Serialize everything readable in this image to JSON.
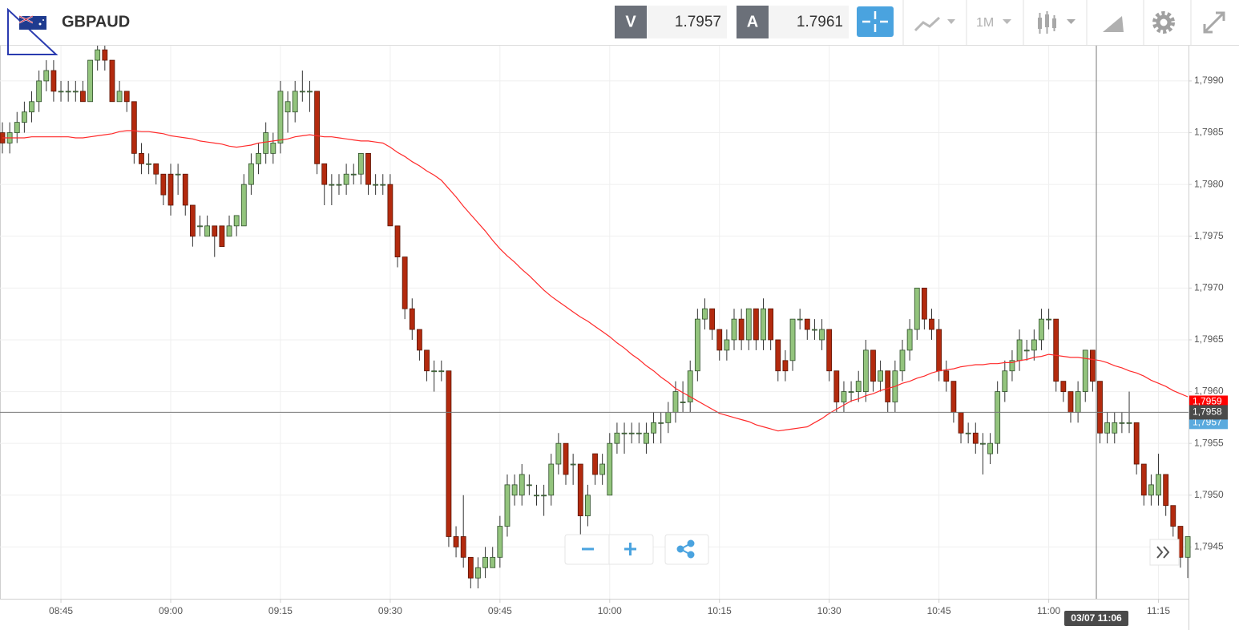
{
  "header": {
    "symbol": "GBPAUD",
    "bid_label": "V",
    "bid": "1.7957",
    "ask_label": "A",
    "ask": "1.7961",
    "timeframe": "1M"
  },
  "chart_data": {
    "type": "candlestick",
    "categories": [
      null,
      null,
      null,
      null,
      null,
      null,
      null,
      null,
      "08:45",
      null,
      null,
      null,
      null,
      null,
      null,
      null,
      null,
      null,
      null,
      null,
      null,
      null,
      null,
      "09:00",
      null,
      null,
      null,
      null,
      null,
      null,
      null,
      null,
      null,
      null,
      null,
      null,
      null,
      null,
      "09:15",
      null,
      null,
      null,
      null,
      null,
      null,
      null,
      null,
      null,
      null,
      null,
      null,
      null,
      null,
      "09:30",
      null,
      null,
      null,
      null,
      null,
      null,
      null,
      null,
      null,
      null,
      null,
      null,
      null,
      null,
      "09:45",
      null,
      null,
      null,
      null,
      null,
      null,
      null,
      null,
      null,
      null,
      null,
      null,
      null,
      null,
      "10:00",
      null,
      null,
      null,
      null,
      null,
      null,
      null,
      null,
      null,
      null,
      null,
      null,
      null,
      null,
      "10:15",
      null,
      null,
      null,
      null,
      null,
      null,
      null,
      null,
      null,
      null,
      null,
      null,
      null,
      null,
      "10:30",
      null,
      null,
      null,
      null,
      null,
      null,
      null,
      null,
      null,
      null,
      null,
      null,
      null,
      null,
      "10:45",
      null,
      null,
      null,
      null,
      null,
      null,
      null,
      null,
      null,
      null,
      null,
      null,
      null,
      null,
      "11:00",
      null,
      null,
      null,
      null,
      null,
      null,
      null,
      null,
      null,
      null,
      null,
      null,
      null,
      null,
      "11:15",
      null,
      null,
      null,
      null
    ],
    "open": [
      1.7985,
      1.7984,
      1.7985,
      1.7986,
      1.7987,
      1.7988,
      1.799,
      1.7991,
      1.7989,
      1.7989,
      1.7989,
      1.7989,
      1.7988,
      1.7992,
      1.7993,
      1.7992,
      1.7988,
      1.7989,
      1.7988,
      1.7983,
      1.7982,
      1.7982,
      1.7981,
      1.7981,
      1.7981,
      1.7981,
      1.7978,
      1.7976,
      1.7975,
      1.7976,
      1.7976,
      1.7975,
      1.7976,
      1.7976,
      1.798,
      1.7982,
      1.7983,
      1.7983,
      1.7984,
      1.7987,
      1.7987,
      1.7989,
      1.7989,
      1.7989,
      1.7982,
      1.798,
      1.798,
      1.798,
      1.7981,
      1.7981,
      1.7983,
      1.798,
      1.798,
      1.798,
      1.7976,
      1.7973,
      1.7968,
      1.7966,
      1.7964,
      1.7962,
      1.7962,
      1.7962,
      1.7946,
      1.7946,
      1.7944,
      1.7942,
      1.7943,
      1.7943,
      1.7944,
      1.7947,
      1.795,
      1.795,
      1.7951,
      1.795,
      1.795,
      1.795,
      1.7953,
      1.7955,
      1.7953,
      1.7953,
      1.7948,
      1.7954,
      1.7952,
      1.795,
      1.7955,
      1.7956,
      1.7956,
      1.7956,
      1.7955,
      1.7956,
      1.7957,
      1.7957,
      1.7958,
      1.7959,
      1.7959,
      1.7962,
      1.7967,
      1.7968,
      1.7966,
      1.7964,
      1.7965,
      1.7967,
      1.7965,
      1.7968,
      1.7965,
      1.7968,
      1.7965,
      1.7963,
      1.7963,
      1.7967,
      1.7967,
      1.7966,
      1.7965,
      1.7966,
      1.7962,
      1.7959,
      1.796,
      1.796,
      1.796,
      1.7964,
      1.7961,
      1.7962,
      1.7959,
      1.7962,
      1.7964,
      1.7966,
      1.797,
      1.7967,
      1.7966,
      1.7962,
      1.7961,
      1.7958,
      1.7956,
      1.7956,
      1.7955,
      1.7954,
      1.7955,
      1.796,
      1.7962,
      1.7963,
      1.7964,
      1.7964,
      1.7965,
      1.7967,
      1.7967,
      1.7961,
      1.796,
      1.7958,
      1.796,
      1.7964,
      1.7961,
      1.7956,
      1.7956,
      1.7957,
      1.7957,
      1.7957,
      1.7953,
      1.795,
      1.795,
      1.7952,
      1.7949,
      1.7947,
      1.7944
    ],
    "high": [
      1.7986,
      1.7986,
      1.7987,
      1.7988,
      1.7989,
      1.7991,
      1.7992,
      1.7992,
      1.799,
      1.799,
      1.799,
      1.799,
      1.7992,
      1.7994,
      1.7994,
      1.7992,
      1.799,
      1.7989,
      1.7988,
      1.7984,
      1.7983,
      1.7982,
      1.7981,
      1.7982,
      1.7982,
      1.7981,
      1.7978,
      1.7977,
      1.7977,
      1.7976,
      1.7976,
      1.7977,
      1.7977,
      1.7981,
      1.7983,
      1.7984,
      1.7986,
      1.7985,
      1.799,
      1.7989,
      1.799,
      1.7991,
      1.799,
      1.7989,
      1.7982,
      1.7981,
      1.7981,
      1.7982,
      1.7982,
      1.7983,
      1.7983,
      1.7981,
      1.7981,
      1.7981,
      1.7976,
      1.7973,
      1.7969,
      1.7966,
      1.7964,
      1.7963,
      1.7963,
      1.7962,
      1.7947,
      1.795,
      1.7944,
      1.7944,
      1.7945,
      1.7945,
      1.7948,
      1.7952,
      1.7952,
      1.7953,
      1.7952,
      1.7951,
      1.7951,
      1.7954,
      1.7956,
      1.7955,
      1.7954,
      1.7953,
      1.7951,
      1.7954,
      1.7954,
      1.7956,
      1.7957,
      1.7957,
      1.7957,
      1.7957,
      1.7957,
      1.7958,
      1.7958,
      1.7959,
      1.7961,
      1.7961,
      1.7963,
      1.7968,
      1.7969,
      1.7968,
      1.7966,
      1.7966,
      1.7968,
      1.7968,
      1.7968,
      1.7968,
      1.7969,
      1.7968,
      1.7965,
      1.7964,
      1.7967,
      1.7968,
      1.7967,
      1.7967,
      1.7967,
      1.7966,
      1.7962,
      1.7961,
      1.7961,
      1.7962,
      1.7965,
      1.7964,
      1.7963,
      1.7962,
      1.7963,
      1.7965,
      1.7967,
      1.797,
      1.797,
      1.7968,
      1.7967,
      1.7963,
      1.7961,
      1.7958,
      1.7957,
      1.7957,
      1.7956,
      1.7956,
      1.7961,
      1.7963,
      1.7964,
      1.7966,
      1.7965,
      1.7966,
      1.7968,
      1.7968,
      1.7967,
      1.7961,
      1.796,
      1.7961,
      1.7964,
      1.7964,
      1.7961,
      1.7958,
      1.7958,
      1.7958,
      1.796,
      1.7957,
      1.7953,
      1.7952,
      1.7954,
      1.7952,
      1.7949,
      1.7947,
      1.7946
    ],
    "low": [
      1.7983,
      1.7983,
      1.7984,
      1.7985,
      1.7986,
      1.7987,
      1.7989,
      1.7988,
      1.7988,
      1.7988,
      1.7988,
      1.7988,
      1.7988,
      1.7991,
      1.7991,
      1.7988,
      1.7988,
      1.7987,
      1.7982,
      1.7981,
      1.7981,
      1.798,
      1.7978,
      1.7977,
      1.7979,
      1.7977,
      1.7974,
      1.7975,
      1.7975,
      1.7973,
      1.7974,
      1.7975,
      1.7975,
      1.7976,
      1.7979,
      1.7981,
      1.7982,
      1.7982,
      1.7983,
      1.7985,
      1.7986,
      1.7988,
      1.7987,
      1.7981,
      1.7978,
      1.7978,
      1.7979,
      1.7979,
      1.798,
      1.798,
      1.7979,
      1.7979,
      1.7979,
      1.7976,
      1.7972,
      1.7967,
      1.7965,
      1.7963,
      1.7961,
      1.796,
      1.7961,
      1.7945,
      1.7944,
      1.7943,
      1.7941,
      1.7941,
      1.7942,
      1.7943,
      1.7943,
      1.7946,
      1.7949,
      1.7949,
      1.795,
      1.7949,
      1.7948,
      1.7949,
      1.7952,
      1.7951,
      1.7951,
      1.7946,
      1.7947,
      1.7951,
      1.7951,
      1.795,
      1.7954,
      1.7954,
      1.7955,
      1.7955,
      1.7954,
      1.7955,
      1.7955,
      1.7956,
      1.7957,
      1.7958,
      1.7958,
      1.7961,
      1.7966,
      1.7965,
      1.7963,
      1.7963,
      1.7964,
      1.7964,
      1.7964,
      1.7964,
      1.7964,
      1.7964,
      1.7961,
      1.7961,
      1.7962,
      1.7966,
      1.7965,
      1.7965,
      1.7964,
      1.7961,
      1.7958,
      1.7958,
      1.7959,
      1.7959,
      1.7959,
      1.796,
      1.796,
      1.7958,
      1.7958,
      1.7961,
      1.7963,
      1.7965,
      1.7966,
      1.7965,
      1.7961,
      1.796,
      1.7957,
      1.7955,
      1.7955,
      1.7954,
      1.7952,
      1.7953,
      1.7954,
      1.7959,
      1.7961,
      1.7962,
      1.7963,
      1.7963,
      1.7964,
      1.7966,
      1.796,
      1.7959,
      1.7957,
      1.7957,
      1.7959,
      1.796,
      1.7955,
      1.7955,
      1.7955,
      1.7956,
      1.7956,
      1.7952,
      1.7949,
      1.7949,
      1.7949,
      1.7948,
      1.7946,
      1.7943,
      1.7942
    ],
    "close": [
      1.7984,
      1.7985,
      1.7986,
      1.7987,
      1.7988,
      1.799,
      1.7991,
      1.7989,
      1.7989,
      1.7989,
      1.7989,
      1.7988,
      1.7992,
      1.7993,
      1.7992,
      1.7988,
      1.7989,
      1.7988,
      1.7983,
      1.7982,
      1.7982,
      1.7981,
      1.7979,
      1.7978,
      1.7981,
      1.7978,
      1.7975,
      1.7976,
      1.7976,
      1.7975,
      1.7974,
      1.7976,
      1.7977,
      1.798,
      1.7982,
      1.7983,
      1.7985,
      1.7984,
      1.7989,
      1.7988,
      1.7989,
      1.7989,
      1.7989,
      1.7982,
      1.798,
      1.798,
      1.798,
      1.7981,
      1.7981,
      1.7983,
      1.798,
      1.798,
      1.798,
      1.7976,
      1.7973,
      1.7968,
      1.7966,
      1.7964,
      1.7962,
      1.7962,
      1.7962,
      1.7946,
      1.7945,
      1.7944,
      1.7942,
      1.7943,
      1.7944,
      1.7944,
      1.7947,
      1.7951,
      1.7951,
      1.7952,
      1.7951,
      1.795,
      1.795,
      1.7953,
      1.7955,
      1.7952,
      1.7953,
      1.7948,
      1.795,
      1.7952,
      1.7953,
      1.7955,
      1.7956,
      1.7956,
      1.7956,
      1.7956,
      1.7956,
      1.7957,
      1.7957,
      1.7958,
      1.796,
      1.7959,
      1.7962,
      1.7967,
      1.7968,
      1.7966,
      1.7964,
      1.7965,
      1.7967,
      1.7965,
      1.7968,
      1.7965,
      1.7968,
      1.7965,
      1.7962,
      1.7962,
      1.7967,
      1.7967,
      1.7966,
      1.7966,
      1.7966,
      1.7962,
      1.7959,
      1.796,
      1.796,
      1.7961,
      1.7964,
      1.7961,
      1.7962,
      1.7959,
      1.7962,
      1.7964,
      1.7966,
      1.797,
      1.7967,
      1.7966,
      1.7962,
      1.7961,
      1.7958,
      1.7956,
      1.7956,
      1.7955,
      1.7955,
      1.7955,
      1.796,
      1.7962,
      1.7963,
      1.7965,
      1.7964,
      1.7965,
      1.7967,
      1.7967,
      1.7961,
      1.796,
      1.7958,
      1.796,
      1.7964,
      1.7961,
      1.7956,
      1.7957,
      1.7957,
      1.7957,
      1.7957,
      1.7953,
      1.795,
      1.7951,
      1.7952,
      1.7949,
      1.7947,
      1.7944,
      1.7946
    ],
    "up_color": "#93c47d",
    "down_color": "#b32a0e",
    "moving_average": {
      "color": "#ff2a2a",
      "values": [
        1.79845,
        1.79845,
        1.79845,
        1.79845,
        1.79846,
        1.79846,
        1.79846,
        1.79846,
        1.79846,
        1.79846,
        1.79845,
        1.79845,
        1.79846,
        1.79847,
        1.79848,
        1.79849,
        1.79851,
        1.79852,
        1.79852,
        1.79851,
        1.79851,
        1.7985,
        1.79849,
        1.79847,
        1.79846,
        1.79845,
        1.79844,
        1.79842,
        1.79841,
        1.7984,
        1.79839,
        1.79837,
        1.79836,
        1.79837,
        1.79838,
        1.7984,
        1.79841,
        1.79842,
        1.79843,
        1.79844,
        1.79846,
        1.79847,
        1.79848,
        1.79847,
        1.79846,
        1.79846,
        1.79845,
        1.79844,
        1.79843,
        1.79842,
        1.79842,
        1.79841,
        1.7984,
        1.79836,
        1.79831,
        1.79827,
        1.79822,
        1.79818,
        1.79813,
        1.79809,
        1.79804,
        1.79796,
        1.79788,
        1.79779,
        1.79771,
        1.79763,
        1.79755,
        1.79746,
        1.79738,
        1.79731,
        1.79725,
        1.79718,
        1.79712,
        1.79705,
        1.79698,
        1.79692,
        1.79687,
        1.79682,
        1.79677,
        1.79672,
        1.79668,
        1.79663,
        1.79658,
        1.79653,
        1.79647,
        1.79642,
        1.79636,
        1.79631,
        1.79625,
        1.7962,
        1.79614,
        1.79609,
        1.79603,
        1.79599,
        1.79595,
        1.79591,
        1.79587,
        1.79583,
        1.79579,
        1.79577,
        1.79575,
        1.79573,
        1.79571,
        1.79568,
        1.79566,
        1.79564,
        1.79562,
        1.79563,
        1.79564,
        1.79565,
        1.79566,
        1.7957,
        1.79574,
        1.79579,
        1.79583,
        1.79587,
        1.79591,
        1.79593,
        1.79596,
        1.79598,
        1.79601,
        1.79603,
        1.79605,
        1.79608,
        1.7961,
        1.79613,
        1.79615,
        1.79618,
        1.7962,
        1.79621,
        1.79622,
        1.79624,
        1.79625,
        1.79626,
        1.79626,
        1.79627,
        1.79627,
        1.79628,
        1.79628,
        1.7963,
        1.79631,
        1.79633,
        1.79634,
        1.79636,
        1.79635,
        1.79634,
        1.79633,
        1.79633,
        1.79632,
        1.79631,
        1.7963,
        1.79628,
        1.79625,
        1.79623,
        1.7962,
        1.79618,
        1.79615,
        1.79611,
        1.79608,
        1.79605,
        1.79601,
        1.79598,
        1.79595
      ]
    },
    "ylim": [
      1.794,
      1.79934
    ],
    "yticks": [
      {
        "value": 1.7945,
        "label": "1,7945"
      },
      {
        "value": 1.795,
        "label": "1,7950"
      },
      {
        "value": 1.7955,
        "label": "1,7955"
      },
      {
        "value": 1.796,
        "label": "1,7960"
      },
      {
        "value": 1.7965,
        "label": "1,7965"
      },
      {
        "value": 1.797,
        "label": "1,7970"
      },
      {
        "value": 1.7975,
        "label": "1,7975"
      },
      {
        "value": 1.798,
        "label": "1,7980"
      },
      {
        "value": 1.7985,
        "label": "1,7985"
      },
      {
        "value": 1.799,
        "label": "1,7990"
      }
    ],
    "grid": true,
    "price_tags": [
      {
        "value": 1.7959,
        "label": "1,7959",
        "color": "#ff0000"
      },
      {
        "value": 1.7957,
        "label": "1,7957",
        "color": "#5aaade"
      }
    ],
    "crosshair": {
      "price": {
        "value": 1.7958,
        "label": "1,7958"
      },
      "time": "03/07 11:06"
    }
  }
}
